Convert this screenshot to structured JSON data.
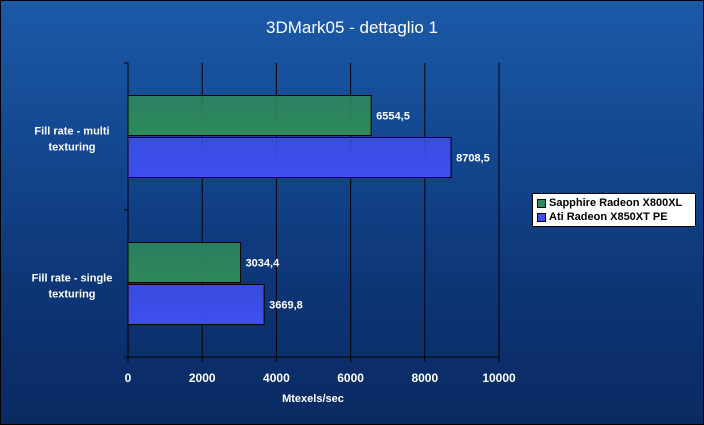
{
  "chart_data": {
    "type": "bar",
    "orientation": "horizontal",
    "title": "3DMark05 - dettaglio 1",
    "xlabel": "Mtexels/sec",
    "ylabel": "",
    "xlim": [
      0,
      10000
    ],
    "ticks": [
      "0",
      "2000",
      "4000",
      "6000",
      "8000",
      "10000"
    ],
    "grid": true,
    "legend_position": "right",
    "categories": [
      {
        "line1": "Fill rate - multi",
        "line2": "texturing"
      },
      {
        "line1": "Fill rate - single",
        "line2": "texturing"
      }
    ],
    "series": [
      {
        "name": "Sapphire Radeon X800XL",
        "values": [
          6554.5,
          3034.4
        ],
        "labels": [
          "6554,5",
          "3034,4"
        ],
        "color": "#2e8a5a"
      },
      {
        "name": "Ati Radeon X850XT PE",
        "values": [
          8708.5,
          3669.8
        ],
        "labels": [
          "8708,5",
          "3669,8"
        ],
        "color": "#3f4ff0"
      }
    ]
  }
}
